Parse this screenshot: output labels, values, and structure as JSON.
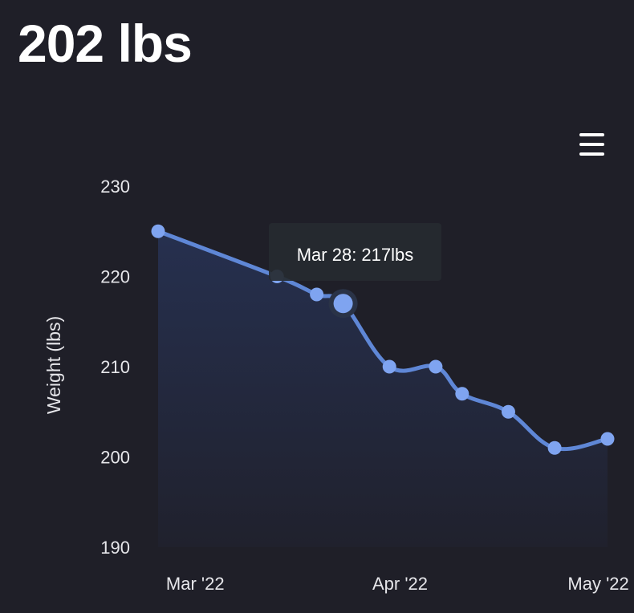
{
  "header": {
    "current_weight": "202 lbs"
  },
  "menu": {
    "icon": "hamburger-menu-icon"
  },
  "chart_data": {
    "type": "area",
    "ylabel": "Weight (lbs)",
    "ylim": [
      190,
      230
    ],
    "y_ticks": [
      "190",
      "200",
      "210",
      "220",
      "230"
    ],
    "x_ticks": [
      {
        "date": "2022-03-01",
        "label": "Mar '22"
      },
      {
        "date": "2022-04-01",
        "label": "Apr '22"
      },
      {
        "date": "2022-05-01",
        "label": "May '22"
      }
    ],
    "x_range": [
      "2022-02-28",
      "2022-05-07"
    ],
    "grid": false,
    "series": [
      {
        "x": [
          "2022-02-28",
          "2022-03-18",
          "2022-03-24",
          "2022-03-28",
          "2022-04-04",
          "2022-04-11",
          "2022-04-15",
          "2022-04-22",
          "2022-04-29",
          "2022-05-07"
        ],
        "values": [
          225,
          220,
          218,
          217,
          210,
          210,
          207,
          205,
          201,
          202
        ]
      }
    ],
    "highlighted_index": 3,
    "tooltip": "Mar 28: 217lbs",
    "colors": {
      "line": "#5f87d6",
      "marker": "#7fa4f0",
      "area_top": "#26304f",
      "area_bottom": "#20212d",
      "tooltip_bg": "#262a30"
    }
  }
}
